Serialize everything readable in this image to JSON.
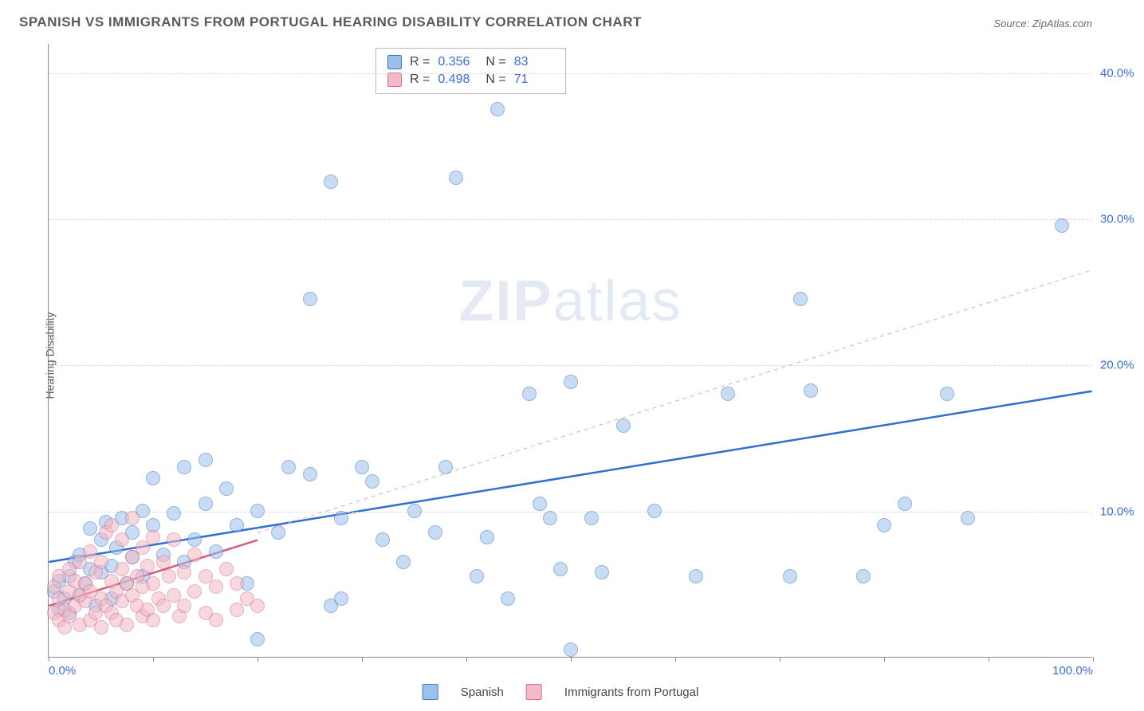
{
  "title": "SPANISH VS IMMIGRANTS FROM PORTUGAL HEARING DISABILITY CORRELATION CHART",
  "source": "Source: ZipAtlas.com",
  "watermark_bold": "ZIP",
  "watermark_light": "atlas",
  "y_axis_label": "Hearing Disability",
  "chart": {
    "type": "scatter",
    "xlim": [
      0,
      100
    ],
    "ylim": [
      0,
      42
    ],
    "y_ticks": [
      10,
      20,
      30,
      40
    ],
    "y_tick_labels": [
      "10.0%",
      "20.0%",
      "30.0%",
      "40.0%"
    ],
    "x_ticks": [
      0,
      10,
      20,
      30,
      40,
      50,
      60,
      70,
      80,
      90,
      100
    ],
    "x_tick_labels_shown": {
      "0": "0.0%",
      "100": "100.0%"
    },
    "background_color": "#ffffff",
    "grid_color": "#dcdcdc",
    "axis_color": "#8a8a8a",
    "tick_label_color": "#3a6fd8",
    "marker_radius": 9,
    "marker_stroke_width": 1,
    "series": [
      {
        "name": "Spanish",
        "fill": "#9cc0ea",
        "fill_opacity": 0.55,
        "stroke": "#3a77c9",
        "trend": {
          "color": "#2f6fd0",
          "width": 2.5,
          "dash": "none",
          "y_at_x0": 6.5,
          "y_at_x100": 18.2
        },
        "trend_extrapolated": {
          "color": "#e8a9b6",
          "width": 1,
          "dash": "5,5",
          "from_x": 20,
          "from_y": 8.5,
          "to_x": 100,
          "to_y": 26.5
        },
        "points": [
          [
            0.5,
            4.5
          ],
          [
            1,
            3.2
          ],
          [
            1,
            5.2
          ],
          [
            1.5,
            4.0
          ],
          [
            2,
            3.0
          ],
          [
            2,
            5.5
          ],
          [
            2.5,
            6.5
          ],
          [
            3,
            4.2
          ],
          [
            3,
            7.0
          ],
          [
            3.5,
            5.0
          ],
          [
            4,
            6.0
          ],
          [
            4,
            8.8
          ],
          [
            4.5,
            3.5
          ],
          [
            5,
            5.8
          ],
          [
            5,
            8.0
          ],
          [
            5.5,
            9.2
          ],
          [
            6,
            6.2
          ],
          [
            6,
            4.0
          ],
          [
            6.5,
            7.5
          ],
          [
            7,
            9.5
          ],
          [
            7.5,
            5.0
          ],
          [
            8,
            8.5
          ],
          [
            8,
            6.8
          ],
          [
            9,
            10.0
          ],
          [
            9,
            5.5
          ],
          [
            10,
            9.0
          ],
          [
            10,
            12.2
          ],
          [
            11,
            7.0
          ],
          [
            12,
            9.8
          ],
          [
            13,
            6.5
          ],
          [
            13,
            13.0
          ],
          [
            14,
            8.0
          ],
          [
            15,
            10.5
          ],
          [
            15,
            13.5
          ],
          [
            16,
            7.2
          ],
          [
            17,
            11.5
          ],
          [
            18,
            9.0
          ],
          [
            19,
            5.0
          ],
          [
            20,
            1.2
          ],
          [
            20,
            10.0
          ],
          [
            22,
            8.5
          ],
          [
            23,
            13.0
          ],
          [
            25,
            12.5
          ],
          [
            25,
            24.5
          ],
          [
            27,
            3.5
          ],
          [
            27,
            32.5
          ],
          [
            28,
            4.0
          ],
          [
            28,
            9.5
          ],
          [
            30,
            13.0
          ],
          [
            31,
            12.0
          ],
          [
            32,
            8.0
          ],
          [
            34,
            6.5
          ],
          [
            35,
            10.0
          ],
          [
            37,
            8.5
          ],
          [
            38,
            13.0
          ],
          [
            39,
            32.8
          ],
          [
            41,
            5.5
          ],
          [
            42,
            8.2
          ],
          [
            43,
            37.5
          ],
          [
            44,
            4.0
          ],
          [
            46,
            18.0
          ],
          [
            47,
            10.5
          ],
          [
            48,
            9.5
          ],
          [
            49,
            6.0
          ],
          [
            50,
            18.8
          ],
          [
            50,
            0.5
          ],
          [
            52,
            9.5
          ],
          [
            53,
            5.8
          ],
          [
            55,
            15.8
          ],
          [
            58,
            10.0
          ],
          [
            62,
            5.5
          ],
          [
            65,
            18.0
          ],
          [
            71,
            5.5
          ],
          [
            72,
            24.5
          ],
          [
            73,
            18.2
          ],
          [
            78,
            5.5
          ],
          [
            80,
            9.0
          ],
          [
            82,
            10.5
          ],
          [
            86,
            18.0
          ],
          [
            88,
            9.5
          ],
          [
            97,
            29.5
          ]
        ]
      },
      {
        "name": "Immigrants from Portugal",
        "fill": "#f4b9c6",
        "fill_opacity": 0.55,
        "stroke": "#d76f89",
        "trend": {
          "color": "#d95a7a",
          "width": 2.5,
          "dash": "none",
          "y_at_x0": 3.5,
          "y_at_x_end": 8.0,
          "x_end": 20
        },
        "points": [
          [
            0.5,
            3.0
          ],
          [
            0.5,
            4.8
          ],
          [
            1,
            2.5
          ],
          [
            1,
            4.0
          ],
          [
            1,
            5.5
          ],
          [
            1.5,
            3.2
          ],
          [
            1.5,
            2.0
          ],
          [
            2,
            4.5
          ],
          [
            2,
            6.0
          ],
          [
            2,
            2.8
          ],
          [
            2.5,
            3.5
          ],
          [
            2.5,
            5.2
          ],
          [
            3,
            4.2
          ],
          [
            3,
            2.2
          ],
          [
            3,
            6.5
          ],
          [
            3.5,
            3.8
          ],
          [
            3.5,
            5.0
          ],
          [
            4,
            4.5
          ],
          [
            4,
            2.5
          ],
          [
            4,
            7.2
          ],
          [
            4.5,
            3.0
          ],
          [
            4.5,
            5.8
          ],
          [
            5,
            4.0
          ],
          [
            5,
            6.5
          ],
          [
            5,
            2.0
          ],
          [
            5.5,
            3.5
          ],
          [
            5.5,
            8.5
          ],
          [
            6,
            5.2
          ],
          [
            6,
            3.0
          ],
          [
            6,
            9.0
          ],
          [
            6.5,
            4.5
          ],
          [
            6.5,
            2.5
          ],
          [
            7,
            6.0
          ],
          [
            7,
            3.8
          ],
          [
            7,
            8.0
          ],
          [
            7.5,
            5.0
          ],
          [
            7.5,
            2.2
          ],
          [
            8,
            4.2
          ],
          [
            8,
            6.8
          ],
          [
            8,
            9.5
          ],
          [
            8.5,
            3.5
          ],
          [
            8.5,
            5.5
          ],
          [
            9,
            4.8
          ],
          [
            9,
            2.8
          ],
          [
            9,
            7.5
          ],
          [
            9.5,
            6.2
          ],
          [
            9.5,
            3.2
          ],
          [
            10,
            5.0
          ],
          [
            10,
            8.2
          ],
          [
            10,
            2.5
          ],
          [
            10.5,
            4.0
          ],
          [
            11,
            6.5
          ],
          [
            11,
            3.5
          ],
          [
            11.5,
            5.5
          ],
          [
            12,
            4.2
          ],
          [
            12,
            8.0
          ],
          [
            12.5,
            2.8
          ],
          [
            13,
            5.8
          ],
          [
            13,
            3.5
          ],
          [
            14,
            4.5
          ],
          [
            14,
            7.0
          ],
          [
            15,
            3.0
          ],
          [
            15,
            5.5
          ],
          [
            16,
            4.8
          ],
          [
            16,
            2.5
          ],
          [
            17,
            6.0
          ],
          [
            18,
            3.2
          ],
          [
            18,
            5.0
          ],
          [
            19,
            4.0
          ],
          [
            20,
            3.5
          ]
        ]
      }
    ]
  },
  "stats": [
    {
      "swatch_fill": "#9cc0ea",
      "swatch_stroke": "#3a77c9",
      "r_label": "R =",
      "r": "0.356",
      "n_label": "N =",
      "n": "83"
    },
    {
      "swatch_fill": "#f4b9c6",
      "swatch_stroke": "#d76f89",
      "r_label": "R =",
      "r": "0.498",
      "n_label": "N =",
      "n": "71"
    }
  ],
  "bottom_legend": [
    {
      "swatch_fill": "#9cc0ea",
      "swatch_stroke": "#3a77c9",
      "label": "Spanish"
    },
    {
      "swatch_fill": "#f4b9c6",
      "swatch_stroke": "#d76f89",
      "label": "Immigrants from Portugal"
    }
  ]
}
